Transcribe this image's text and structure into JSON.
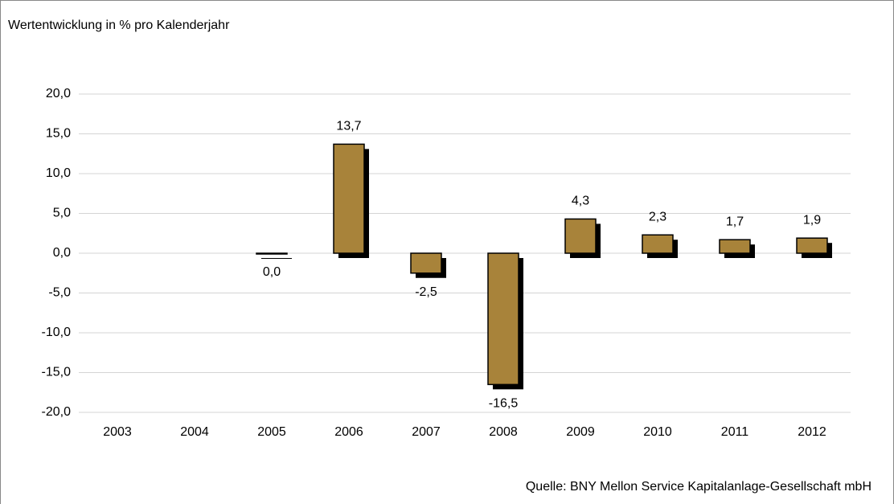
{
  "chart_data": {
    "type": "bar",
    "title": "Wertentwicklung in % pro Kalenderjahr",
    "source": "Quelle: BNY Mellon Service Kapitalanlage-Gesellschaft mbH",
    "categories": [
      "2003",
      "2004",
      "2005",
      "2006",
      "2007",
      "2008",
      "2009",
      "2010",
      "2011",
      "2012"
    ],
    "values": [
      null,
      null,
      0.0,
      13.7,
      -2.5,
      -16.5,
      4.3,
      2.3,
      1.7,
      1.9
    ],
    "value_labels": [
      null,
      null,
      "0,0",
      "13,7",
      "-2,5",
      "-16,5",
      "4,3",
      "2,3",
      "1,7",
      "1,9"
    ],
    "color": "#a8833a",
    "ylim": [
      -20,
      20
    ],
    "yticks": [
      {
        "value": -20,
        "label": "-20,0"
      },
      {
        "value": -15,
        "label": "-15,0"
      },
      {
        "value": -10,
        "label": "-10,0"
      },
      {
        "value": -5,
        "label": "-5,0"
      },
      {
        "value": 0,
        "label": "0,0"
      },
      {
        "value": 5,
        "label": "5,0"
      },
      {
        "value": 10,
        "label": "10,0"
      },
      {
        "value": 15,
        "label": "15,0"
      },
      {
        "value": 20,
        "label": "20,0"
      }
    ],
    "grid": true
  }
}
